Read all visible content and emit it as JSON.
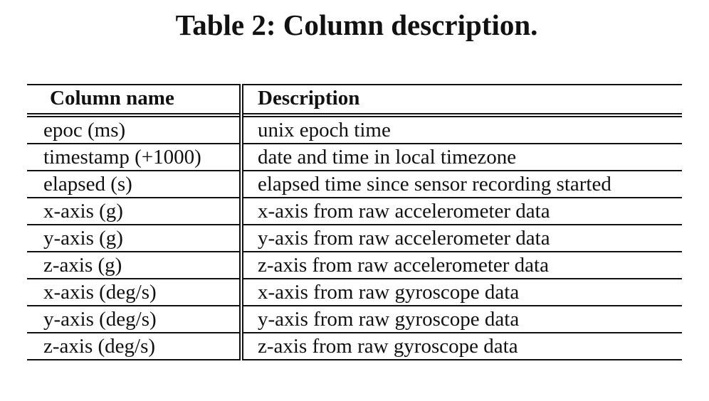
{
  "caption": "Table 2: Column description.",
  "table": {
    "headers": [
      "Column name",
      "Description"
    ],
    "rows": [
      [
        "epoc (ms)",
        "unix epoch time"
      ],
      [
        "timestamp (+1000)",
        "date and time in local timezone"
      ],
      [
        "elapsed (s)",
        "elapsed time since sensor recording started"
      ],
      [
        "x-axis (g)",
        "x-axis from raw accelerometer data"
      ],
      [
        "y-axis (g)",
        "y-axis from raw accelerometer data"
      ],
      [
        "z-axis (g)",
        "z-axis from raw accelerometer data"
      ],
      [
        "x-axis (deg/s)",
        "x-axis from raw gyroscope data"
      ],
      [
        "y-axis (deg/s)",
        "y-axis from raw gyroscope data"
      ],
      [
        "z-axis (deg/s)",
        "z-axis from raw gyroscope data"
      ]
    ]
  }
}
